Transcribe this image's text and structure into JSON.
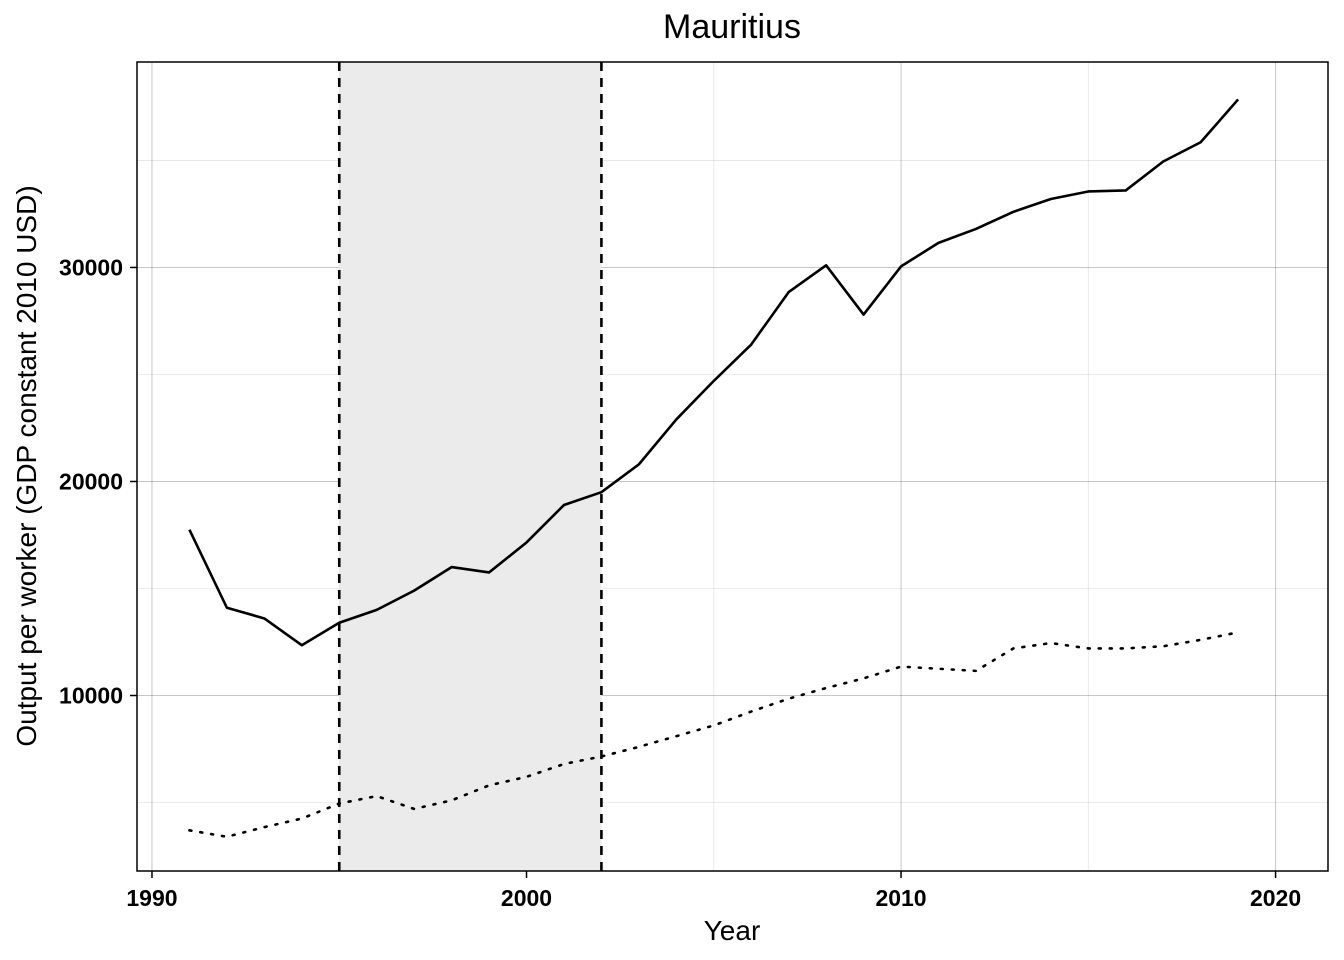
{
  "chart_data": {
    "type": "line",
    "title": "Mauritius",
    "xlabel": "Year",
    "ylabel": "Output per worker (GDP constant 2010 USD)",
    "xlim": [
      1989.6,
      2021.4
    ],
    "ylim": [
      1800,
      39600
    ],
    "x_ticks": [
      1990,
      2000,
      2010,
      2020
    ],
    "x_tick_labels": [
      "1990",
      "2000",
      "2010",
      "2020"
    ],
    "y_ticks": [
      10000,
      20000,
      30000
    ],
    "y_tick_labels": [
      "10000",
      "20000",
      "30000"
    ],
    "grid": true,
    "legend": "none",
    "shaded_period": {
      "start": 1995,
      "end": 2002,
      "color": "#ebebeb"
    },
    "vlines": [
      1995,
      2002
    ],
    "x": [
      1991,
      1992,
      1993,
      1994,
      1995,
      1996,
      1997,
      1998,
      1999,
      2000,
      2001,
      2002,
      2003,
      2004,
      2005,
      2006,
      2007,
      2008,
      2009,
      2010,
      2011,
      2012,
      2013,
      2014,
      2015,
      2016,
      2017,
      2018,
      2019
    ],
    "series": [
      {
        "style": "solid",
        "values": [
          17750,
          14100,
          13600,
          12350,
          13400,
          14000,
          14900,
          16000,
          15750,
          17150,
          18900,
          19500,
          20800,
          22900,
          24700,
          26400,
          28850,
          30100,
          27800,
          30050,
          31150,
          31800,
          32600,
          33200,
          33550,
          33600,
          34950,
          35850,
          37850
        ]
      },
      {
        "style": "dotted",
        "values": [
          3700,
          3400,
          3850,
          4250,
          4950,
          5300,
          4700,
          5100,
          5800,
          6200,
          6800,
          7150,
          7600,
          8100,
          8600,
          9250,
          9850,
          10350,
          10800,
          11350,
          11250,
          11150,
          12200,
          12450,
          12200,
          12200,
          12300,
          12600,
          12950
        ]
      }
    ]
  }
}
